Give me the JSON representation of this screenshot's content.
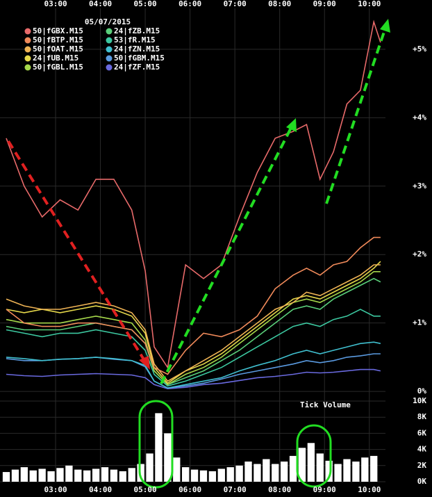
{
  "chart_data": [
    {
      "type": "line",
      "title": "05/07/2015",
      "x": [
        1.9,
        2.3,
        2.7,
        3.1,
        3.5,
        3.9,
        4.3,
        4.7,
        5.0,
        5.2,
        5.5,
        5.9,
        6.3,
        6.7,
        7.1,
        7.5,
        7.9,
        8.3,
        8.6,
        8.9,
        9.2,
        9.5,
        9.8,
        10.1,
        10.25
      ],
      "xlim": [
        1.76,
        10.36
      ],
      "xticks": [
        {
          "value": 3,
          "label": "03:00"
        },
        {
          "value": 4,
          "label": "04:00"
        },
        {
          "value": 5,
          "label": "05:00"
        },
        {
          "value": 6,
          "label": "06:00"
        },
        {
          "value": 7,
          "label": "07:00"
        },
        {
          "value": 8,
          "label": "08:00"
        },
        {
          "value": 9,
          "label": "09:00"
        },
        {
          "value": 10,
          "label": "10:00"
        }
      ],
      "ylim": [
        -0.07,
        5.72
      ],
      "yticks": [
        {
          "value": 0,
          "label": "0%"
        },
        {
          "value": 1,
          "label": "+1%"
        },
        {
          "value": 2,
          "label": "+2%"
        },
        {
          "value": 3,
          "label": "+3%"
        },
        {
          "value": 4,
          "label": "+4%"
        },
        {
          "value": 5,
          "label": "+5%"
        }
      ],
      "grid": true,
      "series": [
        {
          "name": "50|fGBX.M15",
          "color": "#e86a6a",
          "values": [
            3.7,
            3.0,
            2.55,
            2.8,
            2.65,
            3.1,
            3.1,
            2.65,
            1.76,
            0.65,
            0.35,
            1.85,
            1.65,
            1.85,
            2.55,
            3.2,
            3.7,
            3.8,
            3.9,
            3.1,
            3.5,
            4.2,
            4.4,
            5.4,
            5.1
          ]
        },
        {
          "name": "50|fBTP.M15",
          "color": "#f08a5a",
          "values": [
            1.2,
            1.0,
            0.95,
            0.95,
            1.0,
            1.0,
            0.95,
            0.9,
            0.7,
            0.35,
            0.25,
            0.6,
            0.85,
            0.8,
            0.9,
            1.1,
            1.5,
            1.7,
            1.8,
            1.7,
            1.85,
            1.9,
            2.1,
            2.25,
            2.25
          ]
        },
        {
          "name": "50|fOAT.M15",
          "color": "#f0b455",
          "values": [
            1.35,
            1.25,
            1.2,
            1.2,
            1.25,
            1.3,
            1.25,
            1.15,
            0.9,
            0.4,
            0.15,
            0.3,
            0.45,
            0.6,
            0.8,
            1.0,
            1.2,
            1.3,
            1.45,
            1.4,
            1.5,
            1.6,
            1.7,
            1.85,
            1.85
          ]
        },
        {
          "name": "24|fUB.M15",
          "color": "#e6d84a",
          "values": [
            1.2,
            1.15,
            1.2,
            1.15,
            1.2,
            1.25,
            1.2,
            1.1,
            0.85,
            0.35,
            0.12,
            0.3,
            0.4,
            0.55,
            0.75,
            0.95,
            1.15,
            1.35,
            1.4,
            1.35,
            1.45,
            1.55,
            1.65,
            1.8,
            1.9
          ]
        },
        {
          "name": "50|fGBL.M15",
          "color": "#a6d84a",
          "values": [
            1.05,
            1.0,
            1.0,
            1.0,
            1.05,
            1.1,
            1.05,
            1.0,
            0.75,
            0.3,
            0.1,
            0.25,
            0.35,
            0.5,
            0.7,
            0.9,
            1.1,
            1.3,
            1.35,
            1.3,
            1.4,
            1.5,
            1.6,
            1.75,
            1.75
          ]
        },
        {
          "name": "24|fZB.M15",
          "color": "#5acf7a",
          "values": [
            0.95,
            0.9,
            0.9,
            0.9,
            0.95,
            1.0,
            0.95,
            0.9,
            0.7,
            0.3,
            0.1,
            0.2,
            0.3,
            0.45,
            0.6,
            0.8,
            1.0,
            1.2,
            1.25,
            1.2,
            1.35,
            1.45,
            1.55,
            1.65,
            1.6
          ]
        },
        {
          "name": "53|fR.M15",
          "color": "#3cc8a0",
          "values": [
            0.9,
            0.85,
            0.8,
            0.85,
            0.85,
            0.9,
            0.85,
            0.8,
            0.6,
            0.25,
            0.08,
            0.15,
            0.25,
            0.35,
            0.5,
            0.65,
            0.8,
            0.95,
            1.0,
            0.95,
            1.05,
            1.1,
            1.2,
            1.1,
            1.1
          ]
        },
        {
          "name": "24|fZN.M15",
          "color": "#40c0d0",
          "values": [
            0.5,
            0.48,
            0.45,
            0.47,
            0.48,
            0.5,
            0.48,
            0.45,
            0.38,
            0.15,
            0.05,
            0.1,
            0.15,
            0.2,
            0.3,
            0.38,
            0.45,
            0.55,
            0.6,
            0.55,
            0.6,
            0.65,
            0.7,
            0.72,
            0.7
          ]
        },
        {
          "name": "50|fGBM.M15",
          "color": "#5a9ae0",
          "values": [
            0.48,
            0.45,
            0.45,
            0.47,
            0.48,
            0.5,
            0.47,
            0.45,
            0.36,
            0.15,
            0.05,
            0.08,
            0.12,
            0.18,
            0.25,
            0.3,
            0.35,
            0.4,
            0.45,
            0.42,
            0.45,
            0.5,
            0.52,
            0.55,
            0.55
          ]
        },
        {
          "name": "24|fZF.M15",
          "color": "#6a6ae0",
          "values": [
            0.25,
            0.23,
            0.22,
            0.24,
            0.25,
            0.26,
            0.25,
            0.24,
            0.2,
            0.1,
            0.04,
            0.06,
            0.1,
            0.12,
            0.16,
            0.2,
            0.22,
            0.25,
            0.28,
            0.27,
            0.28,
            0.3,
            0.32,
            0.32,
            0.3
          ]
        }
      ]
    },
    {
      "type": "bar",
      "annotation": "Tick Volume",
      "color": "#ffffff",
      "x": [
        1.9,
        2.1,
        2.3,
        2.5,
        2.7,
        2.9,
        3.1,
        3.3,
        3.5,
        3.7,
        3.9,
        4.1,
        4.3,
        4.5,
        4.7,
        4.9,
        5.1,
        5.3,
        5.5,
        5.7,
        5.9,
        6.1,
        6.3,
        6.5,
        6.7,
        6.9,
        7.1,
        7.3,
        7.5,
        7.7,
        7.9,
        8.1,
        8.3,
        8.5,
        8.7,
        8.9,
        9.1,
        9.3,
        9.5,
        9.7,
        9.9,
        10.1
      ],
      "values": [
        1200,
        1500,
        1800,
        1400,
        1600,
        1300,
        1700,
        2000,
        1500,
        1400,
        1600,
        1800,
        1500,
        1300,
        1700,
        2200,
        3500,
        8500,
        6000,
        3000,
        1800,
        1500,
        1400,
        1300,
        1600,
        1800,
        2000,
        2500,
        2200,
        2800,
        2200,
        2500,
        3200,
        4200,
        4800,
        3500,
        2600,
        2200,
        2800,
        2500,
        3000,
        3200
      ],
      "xlim": [
        1.76,
        10.36
      ],
      "ylim": [
        0,
        10000
      ],
      "yticks": [
        {
          "value": 0,
          "label": "0K"
        },
        {
          "value": 2000,
          "label": "2K"
        },
        {
          "value": 4000,
          "label": "4K"
        },
        {
          "value": 6000,
          "label": "6K"
        },
        {
          "value": 8000,
          "label": "8K"
        },
        {
          "value": 10000,
          "label": "10K"
        }
      ]
    }
  ]
}
